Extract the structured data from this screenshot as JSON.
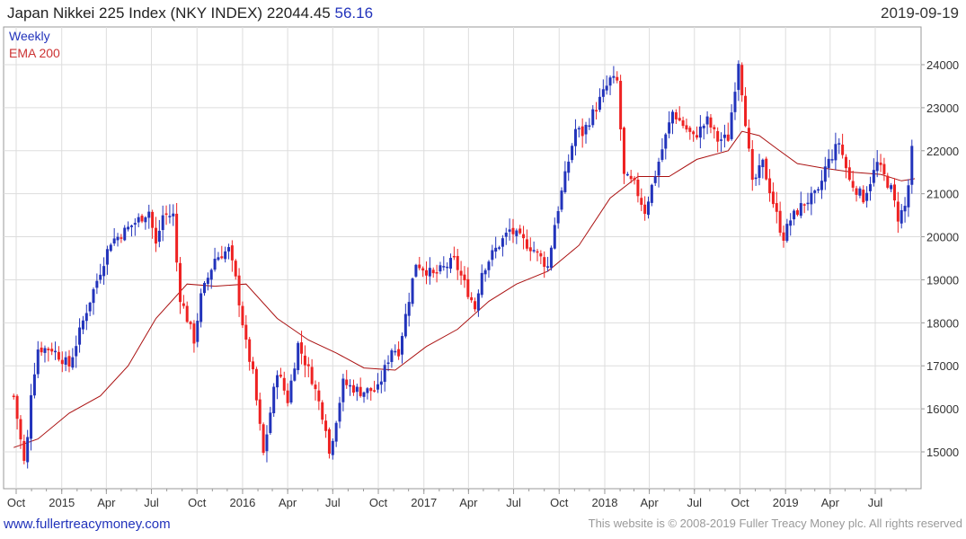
{
  "header": {
    "title": "Japan Nikkei 225 Index (NKY INDEX)",
    "last": "22044.45",
    "change": "56.16",
    "date": "2019-09-19"
  },
  "footer": {
    "website": "www.fullertreacymoney.com",
    "copyright": "This website is © 2008-2019 Fuller Treacy Money plc. All rights reserved"
  },
  "colors": {
    "up": "#2233bb",
    "down": "#ee2222",
    "ema": "#aa1111",
    "grid": "#dddddd",
    "axis": "#999999"
  },
  "chart_data": {
    "type": "candlestick",
    "interval_label": "Weekly",
    "series": [
      {
        "name": "Weekly"
      },
      {
        "name": "EMA 200"
      }
    ],
    "ylim": [
      14200,
      24600
    ],
    "y_ticks": [
      15000,
      16000,
      17000,
      18000,
      19000,
      20000,
      21000,
      22000,
      23000,
      24000
    ],
    "x_ticks": [
      "Oct",
      "2015",
      "Apr",
      "Jul",
      "Oct",
      "2016",
      "Apr",
      "Jul",
      "Oct",
      "2017",
      "Apr",
      "Jul",
      "Oct",
      "2018",
      "Apr",
      "Jul",
      "Oct",
      "2019",
      "Apr",
      "Jul"
    ],
    "grid": true,
    "legend": "top-left",
    "close_path": [
      [
        "2014-09-26",
        16300
      ],
      [
        "2014-10-17",
        14750
      ],
      [
        "2014-10-24",
        15300
      ],
      [
        "2014-10-31",
        16400
      ],
      [
        "2014-11-14",
        17400
      ],
      [
        "2014-12-12",
        17400
      ],
      [
        "2015-01-16",
        17000
      ],
      [
        "2015-02-20",
        18300
      ],
      [
        "2015-04-10",
        19900
      ],
      [
        "2015-04-24",
        20000
      ],
      [
        "2015-06-26",
        20600
      ],
      [
        "2015-07-10",
        19800
      ],
      [
        "2015-07-24",
        20500
      ],
      [
        "2015-08-14",
        20500
      ],
      [
        "2015-08-21",
        19400
      ],
      [
        "2015-08-28",
        18600
      ],
      [
        "2015-09-25",
        17600
      ],
      [
        "2015-10-09",
        18600
      ],
      [
        "2015-11-06",
        19500
      ],
      [
        "2015-12-04",
        19700
      ],
      [
        "2015-12-18",
        19000
      ],
      [
        "2016-01-08",
        17500
      ],
      [
        "2016-01-22",
        16800
      ],
      [
        "2016-02-12",
        14950
      ],
      [
        "2016-03-11",
        16900
      ],
      [
        "2016-04-01",
        16200
      ],
      [
        "2016-04-22",
        17500
      ],
      [
        "2016-05-20",
        16700
      ],
      [
        "2016-06-17",
        15600
      ],
      [
        "2016-06-24",
        14950
      ],
      [
        "2016-07-22",
        16600
      ],
      [
        "2016-08-26",
        16400
      ],
      [
        "2016-09-30",
        16450
      ],
      [
        "2016-10-28",
        17400
      ],
      [
        "2016-11-11",
        17350
      ],
      [
        "2016-12-16",
        19400
      ],
      [
        "2017-01-20",
        19100
      ],
      [
        "2017-03-03",
        19450
      ],
      [
        "2017-04-14",
        18350
      ],
      [
        "2017-04-28",
        19200
      ],
      [
        "2017-05-19",
        19600
      ],
      [
        "2017-06-23",
        20150
      ],
      [
        "2017-08-11",
        19700
      ],
      [
        "2017-09-08",
        19300
      ],
      [
        "2017-09-22",
        20300
      ],
      [
        "2017-11-03",
        22500
      ],
      [
        "2017-11-17",
        22400
      ],
      [
        "2018-01-12",
        23650
      ],
      [
        "2018-01-26",
        23600
      ],
      [
        "2018-02-09",
        21400
      ],
      [
        "2018-03-02",
        21200
      ],
      [
        "2018-03-23",
        20600
      ],
      [
        "2018-05-18",
        22900
      ],
      [
        "2018-06-29",
        22300
      ],
      [
        "2018-07-27",
        22700
      ],
      [
        "2018-08-17",
        22250
      ],
      [
        "2018-09-07",
        22300
      ],
      [
        "2018-09-28",
        24100
      ],
      [
        "2018-10-12",
        22700
      ],
      [
        "2018-10-26",
        21200
      ],
      [
        "2018-11-16",
        21700
      ],
      [
        "2018-12-21",
        20200
      ],
      [
        "2018-12-28",
        20000
      ],
      [
        "2019-01-11",
        20400
      ],
      [
        "2019-02-08",
        20800
      ],
      [
        "2019-03-08",
        21000
      ],
      [
        "2019-03-22",
        21600
      ],
      [
        "2019-04-19",
        22200
      ],
      [
        "2019-05-10",
        21300
      ],
      [
        "2019-06-07",
        20900
      ],
      [
        "2019-07-05",
        21700
      ],
      [
        "2019-08-02",
        21100
      ],
      [
        "2019-08-16",
        20450
      ],
      [
        "2019-08-30",
        20700
      ],
      [
        "2019-09-06",
        21200
      ],
      [
        "2019-09-13",
        21990
      ],
      [
        "2019-09-19",
        22044
      ]
    ],
    "ema_200": [
      [
        "2014-09-26",
        15100
      ],
      [
        "2014-11-14",
        15300
      ],
      [
        "2015-01-16",
        15900
      ],
      [
        "2015-03-20",
        16300
      ],
      [
        "2015-05-15",
        17000
      ],
      [
        "2015-07-10",
        18100
      ],
      [
        "2015-09-11",
        18900
      ],
      [
        "2015-11-06",
        18850
      ],
      [
        "2016-01-08",
        18900
      ],
      [
        "2016-03-11",
        18100
      ],
      [
        "2016-05-13",
        17600
      ],
      [
        "2016-07-08",
        17300
      ],
      [
        "2016-09-02",
        16950
      ],
      [
        "2016-11-04",
        16900
      ],
      [
        "2017-01-06",
        17450
      ],
      [
        "2017-03-10",
        17850
      ],
      [
        "2017-05-12",
        18500
      ],
      [
        "2017-07-07",
        18900
      ],
      [
        "2017-09-08",
        19200
      ],
      [
        "2017-11-10",
        19800
      ],
      [
        "2018-01-12",
        20900
      ],
      [
        "2018-03-09",
        21400
      ],
      [
        "2018-05-11",
        21400
      ],
      [
        "2018-07-06",
        21800
      ],
      [
        "2018-09-07",
        22000
      ],
      [
        "2018-10-05",
        22450
      ],
      [
        "2018-11-09",
        22350
      ],
      [
        "2018-12-14",
        22050
      ],
      [
        "2019-01-25",
        21700
      ],
      [
        "2019-03-15",
        21600
      ],
      [
        "2019-05-17",
        21500
      ],
      [
        "2019-07-12",
        21450
      ],
      [
        "2019-08-23",
        21300
      ],
      [
        "2019-09-19",
        21350
      ]
    ]
  }
}
